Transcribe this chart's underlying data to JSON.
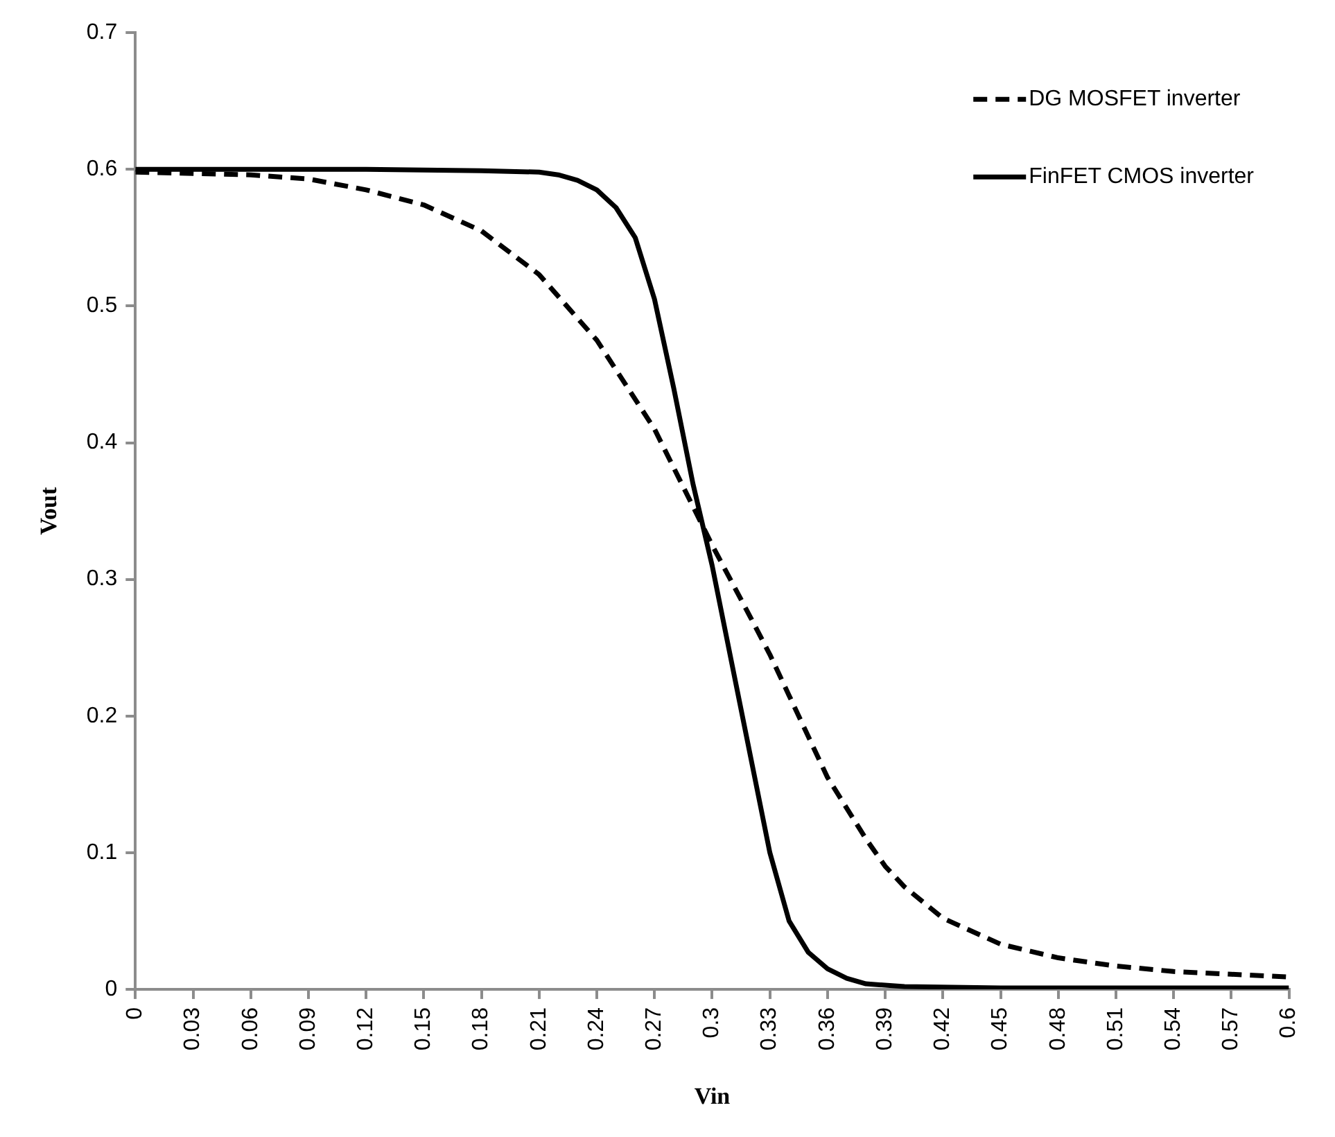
{
  "chart_data": {
    "type": "line",
    "xlabel": "Vin",
    "ylabel": "Vout",
    "xlim": [
      0,
      0.6
    ],
    "xticks": [
      0,
      0.03,
      0.06,
      0.09,
      0.12,
      0.15,
      0.18,
      0.21,
      0.24,
      0.27,
      0.3,
      0.33,
      0.36,
      0.39,
      0.42,
      0.45,
      0.48,
      0.51,
      0.54,
      0.57,
      0.6
    ],
    "ylim": [
      0,
      0.7
    ],
    "yticks": [
      0,
      0.1,
      0.2,
      0.3,
      0.4,
      0.5,
      0.6,
      0.7
    ],
    "grid": false,
    "legend": "top right",
    "marker": "none",
    "series": [
      {
        "name": "DG MOSFET inverter",
        "color": "#000000",
        "line_style": "dashed",
        "x": [
          0,
          0.03,
          0.06,
          0.09,
          0.12,
          0.15,
          0.18,
          0.21,
          0.24,
          0.27,
          0.3,
          0.32,
          0.33,
          0.34,
          0.36,
          0.38,
          0.39,
          0.4,
          0.42,
          0.45,
          0.48,
          0.51,
          0.54,
          0.57,
          0.6
        ],
        "values": [
          0.598,
          0.597,
          0.596,
          0.593,
          0.585,
          0.574,
          0.555,
          0.523,
          0.475,
          0.41,
          0.325,
          0.272,
          0.245,
          0.215,
          0.155,
          0.11,
          0.09,
          0.075,
          0.052,
          0.033,
          0.023,
          0.017,
          0.013,
          0.011,
          0.009
        ]
      },
      {
        "name": "FinFET CMOS inverter",
        "color": "#000000",
        "line_style": "solid",
        "x": [
          0,
          0.06,
          0.12,
          0.18,
          0.21,
          0.22,
          0.23,
          0.24,
          0.25,
          0.26,
          0.27,
          0.28,
          0.29,
          0.3,
          0.31,
          0.32,
          0.33,
          0.34,
          0.35,
          0.36,
          0.37,
          0.38,
          0.4,
          0.45,
          0.6
        ],
        "values": [
          0.6,
          0.6,
          0.6,
          0.599,
          0.598,
          0.596,
          0.592,
          0.585,
          0.572,
          0.55,
          0.505,
          0.44,
          0.37,
          0.31,
          0.24,
          0.17,
          0.1,
          0.05,
          0.027,
          0.015,
          0.008,
          0.004,
          0.002,
          0.001,
          0.001
        ]
      }
    ]
  }
}
